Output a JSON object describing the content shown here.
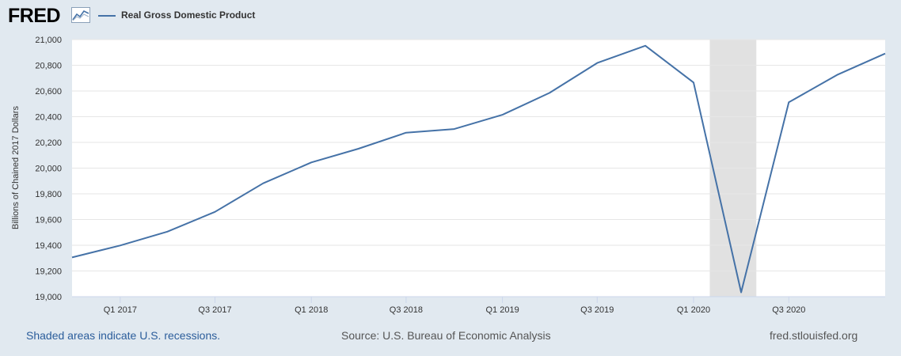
{
  "header": {
    "logo": "FRED",
    "logo_icon": "chart-trend-icon"
  },
  "colors": {
    "series": "#4572a7",
    "recession": "#e1e1e1",
    "background": "#e1e9f0",
    "plot": "#ffffff",
    "grid": "#e6e6e6"
  },
  "chart_data": {
    "type": "line",
    "title": "",
    "xlabel": "",
    "ylabel": "Billions of Chained 2017 Dollars",
    "ylim": [
      19000,
      21000
    ],
    "yticks": [
      19000,
      19200,
      19400,
      19600,
      19800,
      20000,
      20200,
      20400,
      20600,
      20800,
      21000
    ],
    "ytick_labels": [
      "19,000",
      "19,200",
      "19,400",
      "19,600",
      "19,800",
      "20,000",
      "20,200",
      "20,400",
      "20,600",
      "20,800",
      "21,000"
    ],
    "xlim": [
      "2016-10-01",
      "2021-01-01"
    ],
    "xticks": [
      "2017-01-01",
      "2017-07-01",
      "2018-01-01",
      "2018-07-01",
      "2019-01-01",
      "2019-07-01",
      "2020-01-01",
      "2020-07-01"
    ],
    "xtick_labels": [
      "Q1 2017",
      "Q3 2017",
      "Q1 2018",
      "Q3 2018",
      "Q1 2019",
      "Q3 2019",
      "Q1 2020",
      "Q3 2020"
    ],
    "grid": true,
    "legend_position": "top-left",
    "series": [
      {
        "name": "Real Gross Domestic Product",
        "x": [
          "2016-10-01",
          "2017-01-01",
          "2017-04-01",
          "2017-07-01",
          "2017-10-01",
          "2018-01-01",
          "2018-04-01",
          "2018-07-01",
          "2018-10-01",
          "2019-01-01",
          "2019-04-01",
          "2019-07-01",
          "2019-10-01",
          "2020-01-01",
          "2020-04-01",
          "2020-07-01",
          "2020-10-01",
          "2021-01-01"
        ],
        "values": [
          19305,
          19398,
          19506,
          19660,
          19882,
          20044,
          20151,
          20276,
          20304,
          20415,
          20585,
          20818,
          20952,
          20666,
          19034,
          20512,
          20725,
          20891
        ]
      }
    ],
    "recessions": [
      {
        "start": "2020-02-01",
        "end": "2020-04-30"
      }
    ]
  },
  "footer": {
    "recession_note": "Shaded areas indicate U.S. recessions.",
    "source": "Source: U.S. Bureau of Economic Analysis",
    "site": "fred.stlouisfed.org"
  }
}
